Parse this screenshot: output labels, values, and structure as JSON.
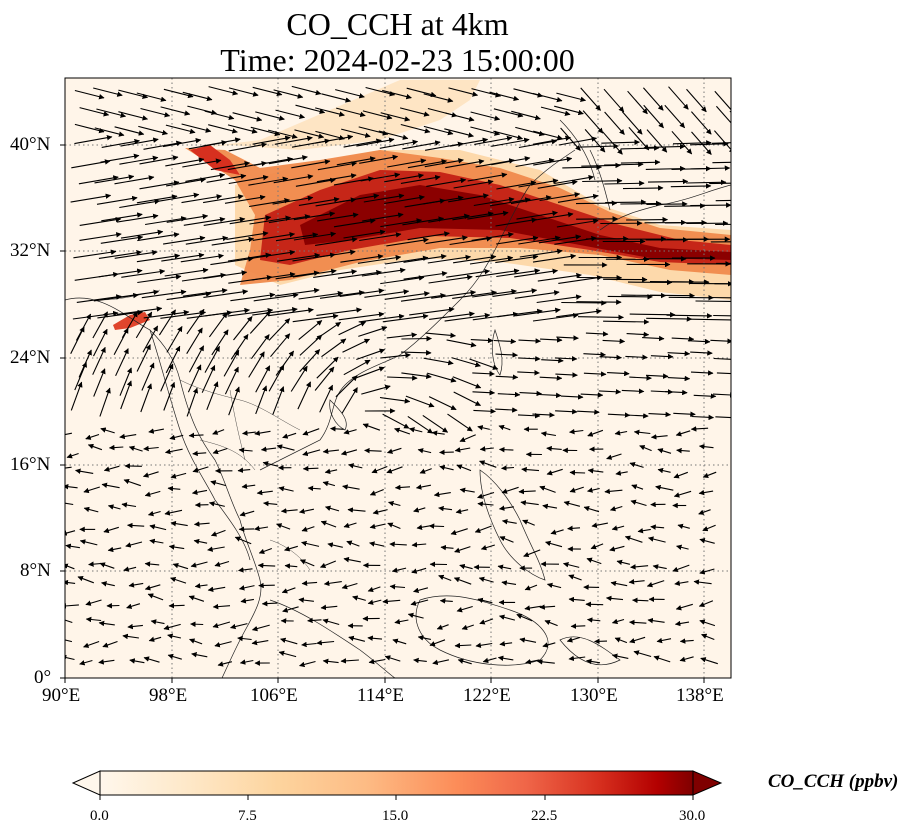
{
  "title": {
    "line1": "CO_CCH at 4km",
    "line2": "Time: 2024-02-23 15:00:00"
  },
  "map": {
    "lon_range": [
      90,
      140
    ],
    "lat_range": [
      0,
      45
    ],
    "lon_ticks": [
      "90°E",
      "98°E",
      "106°E",
      "114°E",
      "122°E",
      "130°E",
      "138°E"
    ],
    "lat_ticks": [
      "0°",
      "8°N",
      "16°N",
      "24°N",
      "32°N",
      "40°N"
    ],
    "gridlines": "dotted",
    "plume_description_colors": {
      "low": "#fff5e9",
      "mid": "#f08a4c",
      "high": "#8b0000"
    }
  },
  "colorbar": {
    "label": "CO_CCH (ppbv)",
    "ticks": [
      "0.0",
      "7.5",
      "15.0",
      "22.5",
      "30.0"
    ],
    "range": [
      0,
      30
    ],
    "extend": "both",
    "colormap": "OrRd"
  }
}
